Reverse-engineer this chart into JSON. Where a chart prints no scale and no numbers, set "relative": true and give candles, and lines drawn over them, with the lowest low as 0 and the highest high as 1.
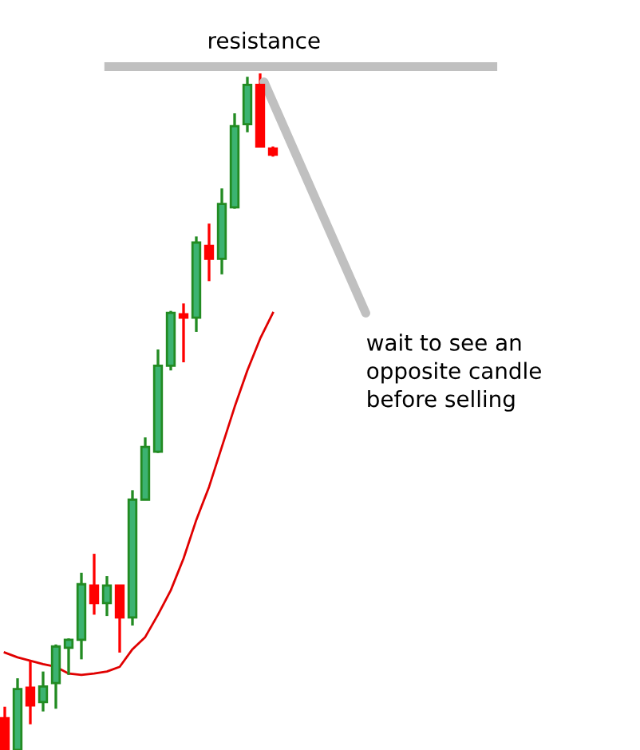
{
  "chart_data": {
    "type": "candlestick",
    "relative": true,
    "categories": [
      null,
      null,
      null,
      null,
      null,
      null,
      null,
      null,
      null,
      null,
      null,
      null,
      null,
      null,
      null,
      null,
      null,
      null,
      null,
      null,
      null,
      null
    ],
    "ohlc": [
      [
        0.047,
        0.064,
        0,
        0
      ],
      [
        0,
        0.106,
        0,
        0.09
      ],
      [
        0.092,
        0.132,
        0.038,
        0.066
      ],
      [
        0.071,
        0.116,
        0.057,
        0.094
      ],
      [
        0.099,
        0.156,
        0.061,
        0.153
      ],
      [
        0.151,
        0.165,
        0.111,
        0.163
      ],
      [
        0.163,
        0.262,
        0.134,
        0.245
      ],
      [
        0.243,
        0.29,
        0.2,
        0.217
      ],
      [
        0.217,
        0.257,
        0.198,
        0.243
      ],
      [
        0.243,
        0.243,
        0.144,
        0.196
      ],
      [
        0.196,
        0.384,
        0.184,
        0.37
      ],
      [
        0.37,
        0.462,
        0.37,
        0.448
      ],
      [
        0.441,
        0.592,
        0.439,
        0.568
      ],
      [
        0.568,
        0.649,
        0.561,
        0.646
      ],
      [
        0.644,
        0.66,
        0.573,
        0.639
      ],
      [
        0.639,
        0.759,
        0.618,
        0.75
      ],
      [
        0.745,
        0.778,
        0.693,
        0.726
      ],
      [
        0.726,
        0.83,
        0.703,
        0.807
      ],
      [
        0.802,
        0.941,
        0.8,
        0.922
      ],
      [
        0.925,
        0.995,
        0.913,
        0.983
      ],
      [
        0.983,
        1,
        0.892,
        0.892
      ],
      [
        0.889,
        0.892,
        0.877,
        0.88
      ]
    ],
    "colors": [
      "#ff0000",
      "#3cb371",
      "#ff0000",
      "#3cb371",
      "#3cb371",
      "#3cb371",
      "#3cb371",
      "#ff0000",
      "#3cb371",
      "#ff0000",
      "#3cb371",
      "#3cb371",
      "#3cb371",
      "#3cb371",
      "#ff0000",
      "#3cb371",
      "#ff0000",
      "#3cb371",
      "#3cb371",
      "#3cb371",
      "#ff0000",
      "#ff0000"
    ],
    "series": [
      {
        "type": "line",
        "color": "#e00000",
        "values": [
          0.144,
          0.137,
          0.132,
          0.127,
          0.123,
          0.113,
          0.111,
          0.113,
          0.116,
          0.123,
          0.149,
          0.167,
          0.2,
          0.236,
          0.283,
          0.34,
          0.389,
          0.448,
          0.507,
          0.561,
          0.608,
          0.646
        ]
      }
    ],
    "ref_lines": [
      {
        "axis": "y",
        "value": 1.01,
        "label": "resistance",
        "color": "#c0c0c0"
      }
    ],
    "annotations": [
      "wait to see an\nopposite candle\nbefore selling"
    ]
  }
}
